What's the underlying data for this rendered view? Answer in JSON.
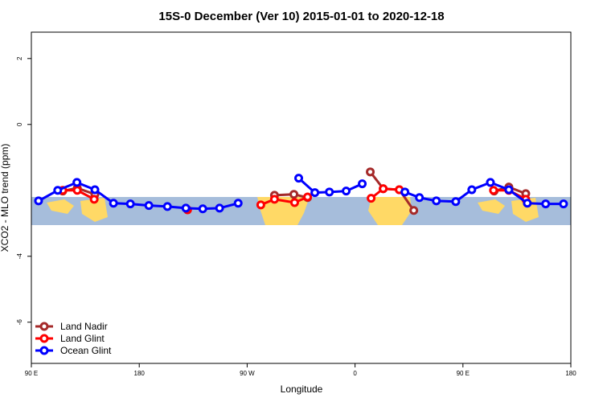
{
  "chart_data": {
    "type": "line",
    "title": "15S-0 December (Ver 10)   2015-01-01 to 2020-12-18",
    "xlabel": "Longitude",
    "ylabel": "XCO2 - MLO trend (ppm)",
    "xlim": [
      90,
      540
    ],
    "ylim": [
      -7.25,
      2.8
    ],
    "xticks": [
      {
        "value": 90,
        "label": "90 E"
      },
      180,
      {
        "value": 270,
        "label": "90 W"
      },
      {
        "value": 360,
        "label": "0"
      },
      {
        "value": 450,
        "label": "90 E"
      },
      {
        "value": 540,
        "label": "180"
      }
    ],
    "yticks": [
      -6,
      -4,
      0,
      2
    ],
    "legend": "bottom-left",
    "series": [
      {
        "name": "Land Nadir",
        "color": "#a52a2a",
        "x": [
          116.2,
          128.3,
          143,
          220,
          292.8,
          309,
          320.4,
          350,
          372.7,
          383.5,
          396.9,
          409,
          440,
          476,
          488.3,
          502.4
        ],
        "values": [
          -2.02,
          -1.93,
          -2.12,
          null,
          -2.15,
          -2.12,
          -2.22,
          null,
          -1.44,
          -1.95,
          -1.98,
          -2.61,
          null,
          -2.02,
          -1.9,
          -2.1
        ]
      },
      {
        "name": "Land Glint",
        "color": "#ff0000",
        "x": [
          116.2,
          128.3,
          142.4,
          180,
          220.3,
          250,
          281.4,
          292.8,
          309.6,
          320.4,
          350,
          373.4,
          383.5,
          396.9,
          440,
          475.5,
          488.3,
          502.4
        ],
        "values": [
          -2.0,
          -2.0,
          -2.27,
          null,
          -2.59,
          null,
          -2.44,
          -2.27,
          -2.37,
          -2.2,
          null,
          -2.24,
          -1.95,
          -1.98,
          null,
          -2.0,
          -2.0,
          -2.27
        ]
      },
      {
        "name": "Ocean Glint",
        "color": "#0000ff",
        "x": [
          96,
          112,
          128,
          143,
          158.5,
          172.6,
          188,
          203.5,
          218.9,
          233,
          247,
          262.5,
          276,
          295,
          313,
          326.5,
          338.6,
          352.6,
          366,
          385,
          401.6,
          413.7,
          427.8,
          444,
          457.4,
          472.9,
          488.3,
          503.7,
          519,
          533.9
        ],
        "values": [
          -2.32,
          -2.0,
          -1.76,
          -1.98,
          -2.39,
          -2.41,
          -2.46,
          -2.49,
          -2.54,
          -2.56,
          -2.54,
          -2.39,
          null,
          null,
          -1.63,
          -2.07,
          -2.05,
          -2.02,
          -1.8,
          null,
          -2.05,
          -2.22,
          -2.32,
          -2.34,
          -1.98,
          -1.76,
          -1.98,
          -2.39,
          -2.41,
          -2.41
        ]
      }
    ]
  }
}
